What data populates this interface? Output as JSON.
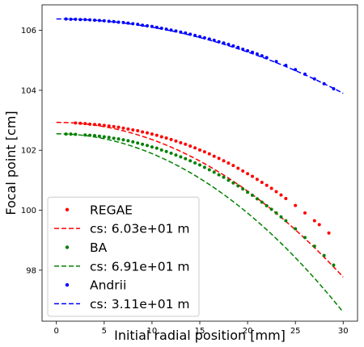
{
  "chart_data": {
    "type": "scatter",
    "xlabel": "Initial radial position [mm]",
    "ylabel": "Focal point [cm]",
    "xlim": [
      -1.5,
      31.5
    ],
    "ylim": [
      96.3,
      106.85
    ],
    "x_ticks": [
      0,
      5,
      10,
      15,
      20,
      25,
      30
    ],
    "y_ticks": [
      98,
      100,
      102,
      104,
      106
    ],
    "grid": false,
    "legend_position": "lower-left",
    "series": [
      {
        "name": "REGAE",
        "kind": "points",
        "color": "#ff0000",
        "points": [
          [
            2.0,
            102.91
          ],
          [
            2.5,
            102.9
          ],
          [
            3.0,
            102.89
          ],
          [
            3.5,
            102.87
          ],
          [
            4.0,
            102.86
          ],
          [
            4.5,
            102.85
          ],
          [
            5.0,
            102.83
          ],
          [
            5.5,
            102.81
          ],
          [
            6.0,
            102.79
          ],
          [
            6.5,
            102.77
          ],
          [
            7.0,
            102.74
          ],
          [
            7.5,
            102.71
          ],
          [
            8.0,
            102.68
          ],
          [
            8.5,
            102.65
          ],
          [
            9.0,
            102.61
          ],
          [
            9.5,
            102.58
          ],
          [
            10.0,
            102.54
          ],
          [
            10.5,
            102.5
          ],
          [
            11.0,
            102.45
          ],
          [
            11.5,
            102.41
          ],
          [
            12.0,
            102.36
          ],
          [
            12.5,
            102.31
          ],
          [
            13.0,
            102.25
          ],
          [
            13.5,
            102.2
          ],
          [
            14.0,
            102.14
          ],
          [
            14.5,
            102.08
          ],
          [
            15.0,
            102.01
          ],
          [
            15.5,
            101.95
          ],
          [
            16.0,
            101.88
          ],
          [
            16.5,
            101.8
          ],
          [
            17.0,
            101.73
          ],
          [
            17.5,
            101.65
          ],
          [
            18.0,
            101.57
          ],
          [
            18.5,
            101.49
          ],
          [
            19.0,
            101.4
          ],
          [
            19.5,
            101.31
          ],
          [
            20.0,
            101.22
          ],
          [
            20.5,
            101.13
          ],
          [
            21.0,
            101.03
          ],
          [
            21.5,
            100.93
          ],
          [
            22.0,
            100.83
          ],
          [
            22.5,
            100.73
          ],
          [
            23.0,
            100.62
          ],
          [
            23.5,
            100.51
          ],
          [
            24.0,
            100.39
          ],
          [
            25.0,
            100.16
          ],
          [
            26.0,
            99.91
          ],
          [
            27.0,
            99.65
          ],
          [
            27.5,
            99.52
          ],
          [
            28.5,
            99.24
          ]
        ]
      },
      {
        "name": "cs: 6.03e+01 m",
        "kind": "fit",
        "color": "#ff0000",
        "x": [
          0,
          30
        ],
        "y0": 102.93,
        "curvature": 0.005733
      },
      {
        "name": "BA",
        "kind": "points",
        "color": "#008000",
        "points": [
          [
            1.0,
            102.54
          ],
          [
            1.5,
            102.54
          ],
          [
            2.0,
            102.53
          ],
          [
            3.0,
            102.51
          ],
          [
            3.5,
            102.5
          ],
          [
            4.0,
            102.49
          ],
          [
            4.5,
            102.47
          ],
          [
            5.0,
            102.45
          ],
          [
            5.5,
            102.43
          ],
          [
            6.0,
            102.4
          ],
          [
            6.5,
            102.38
          ],
          [
            7.0,
            102.35
          ],
          [
            7.5,
            102.32
          ],
          [
            8.0,
            102.28
          ],
          [
            8.5,
            102.24
          ],
          [
            9.0,
            102.2
          ],
          [
            9.5,
            102.16
          ],
          [
            10.0,
            102.11
          ],
          [
            10.5,
            102.07
          ],
          [
            11.0,
            102.01
          ],
          [
            11.5,
            101.96
          ],
          [
            12.0,
            101.9
          ],
          [
            12.5,
            101.84
          ],
          [
            13.0,
            101.78
          ],
          [
            13.5,
            101.72
          ],
          [
            14.0,
            101.65
          ],
          [
            14.5,
            101.58
          ],
          [
            15.0,
            101.51
          ],
          [
            15.5,
            101.43
          ],
          [
            16.0,
            101.35
          ],
          [
            16.5,
            101.27
          ],
          [
            17.0,
            101.18
          ],
          [
            17.5,
            101.1
          ],
          [
            18.0,
            101.0
          ],
          [
            18.5,
            100.91
          ],
          [
            19.0,
            100.81
          ],
          [
            19.5,
            100.71
          ],
          [
            20.0,
            100.6
          ],
          [
            20.5,
            100.5
          ],
          [
            21.0,
            100.38
          ],
          [
            21.5,
            100.27
          ],
          [
            22.0,
            100.15
          ],
          [
            22.5,
            100.03
          ],
          [
            23.0,
            99.91
          ],
          [
            23.5,
            99.78
          ],
          [
            24.0,
            99.65
          ],
          [
            25.0,
            99.38
          ],
          [
            26.0,
            99.09
          ],
          [
            27.0,
            98.8
          ],
          [
            28.0,
            98.49
          ],
          [
            29.0,
            98.17
          ]
        ]
      },
      {
        "name": "cs: 6.91e+01 m",
        "kind": "fit",
        "color": "#008000",
        "x": [
          0,
          30
        ],
        "y0": 102.55,
        "curvature": 0.006611
      },
      {
        "name": "Andrii",
        "kind": "points",
        "color": "#0000ff",
        "points": [
          [
            1.0,
            106.38
          ],
          [
            1.5,
            106.37
          ],
          [
            2.0,
            106.37
          ],
          [
            2.5,
            106.36
          ],
          [
            3.0,
            106.36
          ],
          [
            3.5,
            106.35
          ],
          [
            4.0,
            106.34
          ],
          [
            4.5,
            106.33
          ],
          [
            5.0,
            106.32
          ],
          [
            5.5,
            106.3
          ],
          [
            6.0,
            106.29
          ],
          [
            6.5,
            106.27
          ],
          [
            7.0,
            106.26
          ],
          [
            7.5,
            106.24
          ],
          [
            8.0,
            106.22
          ],
          [
            8.5,
            106.2
          ],
          [
            9.0,
            106.17
          ],
          [
            9.5,
            106.15
          ],
          [
            10.0,
            106.13
          ],
          [
            10.5,
            106.1
          ],
          [
            11.0,
            106.07
          ],
          [
            11.5,
            106.04
          ],
          [
            12.0,
            106.01
          ],
          [
            12.5,
            105.98
          ],
          [
            13.0,
            105.94
          ],
          [
            13.5,
            105.91
          ],
          [
            14.0,
            105.87
          ],
          [
            14.5,
            105.83
          ],
          [
            15.0,
            105.79
          ],
          [
            15.5,
            105.75
          ],
          [
            16.0,
            105.71
          ],
          [
            16.5,
            105.67
          ],
          [
            17.0,
            105.62
          ],
          [
            17.5,
            105.58
          ],
          [
            18.0,
            105.53
          ],
          [
            18.5,
            105.48
          ],
          [
            19.0,
            105.43
          ],
          [
            19.5,
            105.37
          ],
          [
            20.0,
            105.32
          ],
          [
            20.5,
            105.27
          ],
          [
            21.0,
            105.21
          ],
          [
            21.5,
            105.15
          ],
          [
            22.0,
            105.09
          ],
          [
            23.0,
            104.96
          ],
          [
            24.0,
            104.83
          ],
          [
            25.0,
            104.69
          ],
          [
            26.0,
            104.54
          ],
          [
            27.0,
            104.38
          ],
          [
            28.0,
            104.22
          ],
          [
            29.0,
            104.05
          ]
        ]
      },
      {
        "name": "cs: 3.11e+01 m",
        "kind": "fit",
        "color": "#0000ff",
        "x": [
          0,
          30
        ],
        "y0": 106.38,
        "curvature": 0.002756
      }
    ]
  }
}
